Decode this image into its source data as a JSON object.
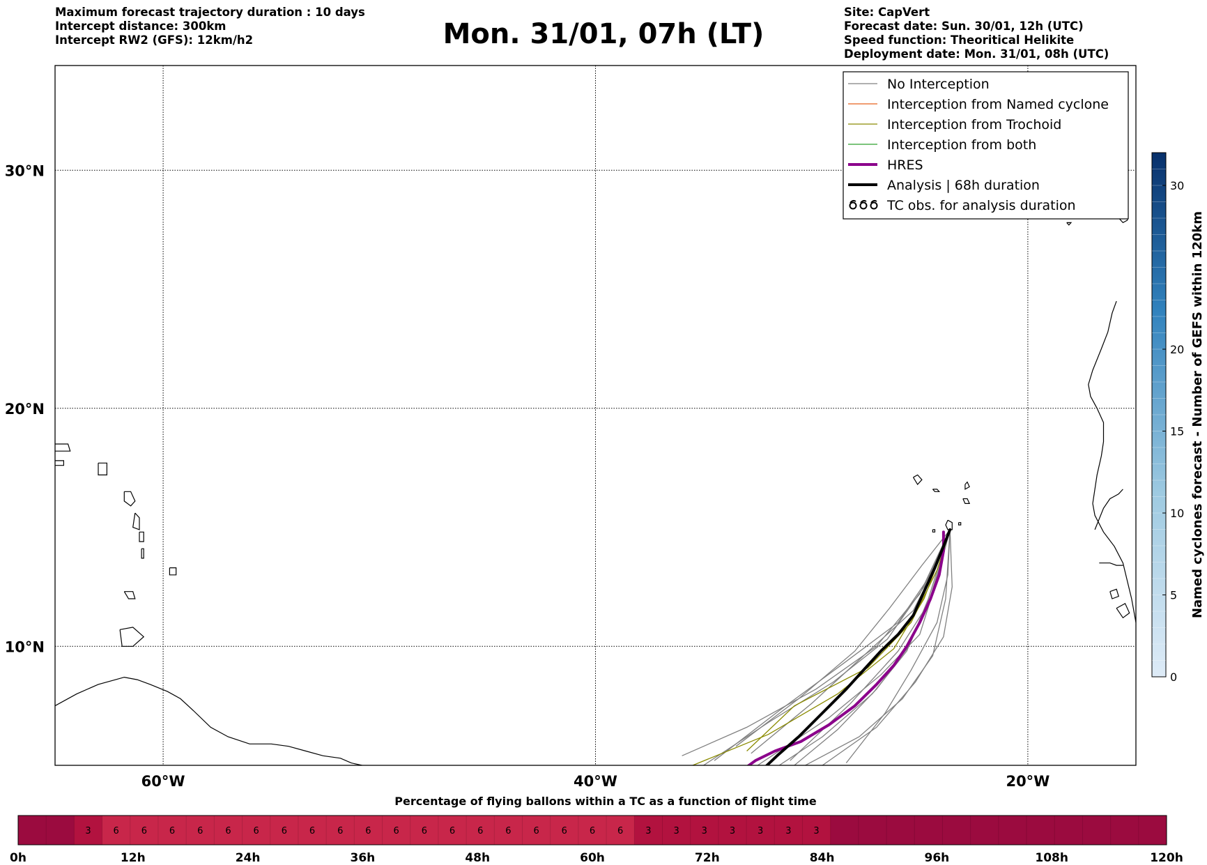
{
  "header": {
    "left_lines": [
      "Maximum forecast trajectory duration : 10 days",
      "Intercept distance: 300km",
      "Intercept RW2 (GFS):  12km/h2"
    ],
    "right_lines": [
      "Site: CapVert",
      "Forecast date: Sun. 30/01, 12h (UTC)",
      "Speed function: Theoritical Helikite",
      "Deployment date: Mon. 31/01, 08h (UTC)"
    ],
    "title": "Mon. 31/01, 07h (LT)"
  },
  "map": {
    "lon_range": [
      -65,
      15
    ],
    "lat_range": [
      5,
      35
    ],
    "lat_ticks": [
      {
        "value": 30,
        "label": "30°N"
      },
      {
        "value": 20,
        "label": "20°N"
      },
      {
        "value": 10,
        "label": "10°N"
      }
    ],
    "lon_ticks": [
      {
        "value": -60,
        "label": "60°W"
      },
      {
        "value": -40,
        "label": "40°W"
      },
      {
        "value": -20,
        "label": "20°W"
      }
    ],
    "grid": true,
    "legend": {
      "placement": "top-right",
      "entries": [
        {
          "label": "No Interception",
          "color": "#808080",
          "style": "thin"
        },
        {
          "label": "Interception from Named cyclone",
          "color": "#e8601c",
          "style": "thin"
        },
        {
          "label": "Interception from Trochoid",
          "color": "#8b8b00",
          "style": "thin"
        },
        {
          "label": "Interception from both",
          "color": "#2ca02c",
          "style": "thin"
        },
        {
          "label": "HRES",
          "color": "#8b008b",
          "style": "thick"
        },
        {
          "label": "Analysis | 68h duration",
          "color": "#000000",
          "style": "thick"
        },
        {
          "label": "TC obs. for analysis duration",
          "color": "#000000",
          "style": "tc-symbol"
        }
      ]
    }
  },
  "colorbar": {
    "label": "Named cyclones forecast - Number of GEFS within 120km",
    "min": 0,
    "max": 32,
    "ticks": [
      0,
      5,
      10,
      15,
      20,
      30
    ],
    "color_low": "#deebf7",
    "color_high": "#08306b"
  },
  "timebar": {
    "title": "Percentage of flying ballons within a TC as a function of flight time",
    "tick_labels": [
      "0h",
      "12h",
      "24h",
      "36h",
      "48h",
      "60h",
      "72h",
      "84h",
      "96h",
      "108h",
      "120h"
    ],
    "cells": [
      null,
      null,
      3,
      6,
      6,
      6,
      6,
      6,
      6,
      6,
      6,
      6,
      6,
      6,
      6,
      6,
      6,
      6,
      6,
      6,
      6,
      6,
      3,
      3,
      3,
      3,
      3,
      3,
      3,
      null,
      null,
      null,
      null,
      null,
      null,
      null,
      null,
      null,
      null,
      null,
      null
    ],
    "color_zero": "#9b0b3f",
    "color_three": "#b2123f",
    "color_six": "#c8264a"
  },
  "chart_data": {
    "type": "line",
    "title": "Mon. 31/01, 07h (LT)",
    "xlabel": "",
    "ylabel": "",
    "xlim": [
      -65,
      15
    ],
    "ylim": [
      5,
      35
    ],
    "series": [
      {
        "name": "HRES",
        "x": [
          -23.9,
          -23.9,
          -24.1,
          -24.5,
          -25.0,
          -25.6,
          -26.2,
          -27.0,
          -28.0,
          -29.2,
          -30.5,
          -31.7,
          -32.6,
          -33.2
        ],
        "y": [
          14.8,
          14.0,
          13.0,
          12.0,
          11.0,
          10.0,
          9.2,
          8.4,
          7.5,
          6.7,
          6.0,
          5.6,
          5.2,
          4.8
        ]
      },
      {
        "name": "Analysis | 68h duration",
        "x": [
          -23.6,
          -23.9,
          -24.3,
          -24.8,
          -25.3,
          -26.0,
          -26.8,
          -27.6,
          -28.4,
          -29.5,
          -30.6,
          -31.6,
          -32.3
        ],
        "y": [
          14.9,
          14.2,
          13.3,
          12.3,
          11.3,
          10.5,
          9.8,
          9.0,
          8.2,
          7.2,
          6.2,
          5.4,
          4.8
        ]
      }
    ]
  },
  "tracks": {
    "gray_ensemble": [
      {
        "x": [
          -23.6,
          -24.8,
          -26.5,
          -29.0,
          -32.0,
          -35.0
        ],
        "y": [
          14.9,
          12.5,
          10.3,
          8.5,
          6.8,
          5.0
        ]
      },
      {
        "x": [
          -23.6,
          -24.2,
          -25.0,
          -26.8,
          -29.2,
          -32.5
        ],
        "y": [
          14.9,
          12.8,
          10.5,
          8.8,
          7.0,
          5.0
        ]
      },
      {
        "x": [
          -23.6,
          -23.5,
          -23.9,
          -25.2,
          -27.0,
          -29.5
        ],
        "y": [
          14.9,
          12.5,
          10.4,
          8.5,
          6.6,
          5.0
        ]
      },
      {
        "x": [
          -23.6,
          -24.5,
          -26.0,
          -28.5,
          -31.5,
          -34.5
        ],
        "y": [
          14.9,
          13.0,
          11.0,
          9.3,
          7.3,
          5.2
        ]
      },
      {
        "x": [
          -23.6,
          -24.3,
          -25.3,
          -27.6,
          -30.0,
          -32.8
        ],
        "y": [
          14.9,
          13.3,
          11.5,
          9.6,
          7.6,
          5.5
        ]
      },
      {
        "x": [
          -23.6,
          -24.0,
          -24.6,
          -26.0,
          -28.2,
          -31.0
        ],
        "y": [
          14.9,
          13.6,
          11.8,
          9.8,
          7.6,
          5.2
        ]
      },
      {
        "x": [
          -23.6,
          -25.0,
          -27.0,
          -29.8,
          -33.0,
          -36.0
        ],
        "y": [
          14.9,
          12.2,
          10.0,
          8.2,
          6.6,
          5.4
        ]
      },
      {
        "x": [
          -23.6,
          -24.6,
          -25.6,
          -27.2,
          -29.5,
          -31.5
        ],
        "y": [
          14.9,
          12.0,
          9.8,
          8.0,
          6.2,
          5.0
        ]
      },
      {
        "x": [
          -23.6,
          -23.8,
          -24.4,
          -25.8,
          -27.8,
          -30.5
        ],
        "y": [
          14.9,
          12.0,
          9.6,
          7.8,
          6.2,
          4.9
        ]
      },
      {
        "x": [
          -23.6,
          -24.9,
          -26.4,
          -28.0,
          -30.6,
          -33.5
        ],
        "y": [
          14.9,
          13.4,
          11.6,
          9.8,
          7.8,
          5.8
        ]
      },
      {
        "x": [
          -23.6,
          -24.4,
          -25.5,
          -27.0,
          -28.8,
          -30.8
        ],
        "y": [
          14.9,
          12.3,
          10.0,
          8.2,
          6.5,
          5.0
        ]
      },
      {
        "x": [
          -23.6,
          -23.7,
          -24.2,
          -25.4,
          -26.6,
          -28.4
        ],
        "y": [
          14.9,
          13.0,
          11.0,
          9.0,
          7.2,
          5.1
        ]
      }
    ],
    "trochoid_tracks": [
      {
        "x": [
          -23.6,
          -24.8,
          -26.2,
          -28.8,
          -32.0,
          -35.5
        ],
        "y": [
          14.9,
          12.0,
          9.9,
          8.0,
          6.3,
          5.0
        ]
      },
      {
        "x": [
          -23.6,
          -24.2,
          -25.4,
          -27.4,
          -30.8,
          -33.0
        ],
        "y": [
          14.9,
          13.2,
          11.0,
          9.1,
          7.5,
          5.6
        ]
      }
    ]
  },
  "coastlines": {
    "caribbean": [
      {
        "x": [
          -65,
          -64.0,
          -63.0,
          -62.2,
          -61.8,
          -61.2,
          -60.6,
          -59.8,
          -59.2,
          -58.6,
          -57.8,
          -57.0,
          -56.0,
          -55.0,
          -54.2,
          -53.4,
          -52.6,
          -51.8,
          -51.3,
          -50.8
        ],
        "y": [
          7.5,
          8.0,
          8.4,
          8.6,
          8.7,
          8.6,
          8.4,
          8.1,
          7.8,
          7.3,
          6.6,
          6.2,
          5.9,
          5.9,
          5.8,
          5.6,
          5.4,
          5.3,
          5.1,
          5.0
        ]
      },
      {
        "x": [
          -62.0,
          -61.4,
          -60.9,
          -61.4,
          -61.9,
          -62.0
        ],
        "y": [
          10.7,
          10.8,
          10.4,
          10.0,
          10.0,
          10.7
        ]
      },
      {
        "x": [
          -63.0,
          -62.6,
          -62.6,
          -63.0,
          -63.0
        ],
        "y": [
          17.7,
          17.7,
          17.2,
          17.2,
          17.7
        ]
      },
      {
        "x": [
          -61.8,
          -61.5,
          -61.3,
          -61.5,
          -61.8,
          -61.8
        ],
        "y": [
          16.5,
          16.5,
          16.1,
          15.9,
          16.1,
          16.5
        ]
      },
      {
        "x": [
          -61.3,
          -61.1,
          -61.1,
          -61.4,
          -61.3
        ],
        "y": [
          15.6,
          15.4,
          14.9,
          15.0,
          15.6
        ]
      },
      {
        "x": [
          -61.1,
          -60.9,
          -60.9,
          -61.1,
          -61.1
        ],
        "y": [
          14.8,
          14.8,
          14.4,
          14.4,
          14.8
        ]
      },
      {
        "x": [
          -61.0,
          -60.9,
          -60.9,
          -61.0,
          -61.0
        ],
        "y": [
          14.1,
          14.1,
          13.7,
          13.7,
          14.1
        ]
      },
      {
        "x": [
          -59.7,
          -59.4,
          -59.4,
          -59.7,
          -59.7
        ],
        "y": [
          13.3,
          13.3,
          13.0,
          13.0,
          13.3
        ]
      },
      {
        "x": [
          -65.0,
          -64.4,
          -64.3,
          -65.0
        ],
        "y": [
          18.5,
          18.5,
          18.2,
          18.2
        ]
      },
      {
        "x": [
          -65.0,
          -64.6,
          -64.6,
          -65.0
        ],
        "y": [
          17.8,
          17.8,
          17.6,
          17.6
        ]
      },
      {
        "x": [
          -61.8,
          -61.4,
          -61.3,
          -61.6,
          -61.8
        ],
        "y": [
          12.3,
          12.3,
          12.0,
          12.0,
          12.3
        ]
      }
    ],
    "africa": [
      {
        "x": [
          -15.9,
          -16.1,
          -16.3,
          -16.6,
          -17.0,
          -17.2,
          -17.1,
          -16.8,
          -16.5,
          -16.5,
          -16.6,
          -16.8,
          -17.0,
          -16.9,
          -16.5,
          -16.0,
          -15.6,
          -15.2,
          -15.0
        ],
        "y": [
          24.5,
          24.0,
          23.2,
          22.5,
          21.6,
          21.0,
          20.5,
          20.0,
          19.4,
          18.6,
          18.0,
          17.2,
          16.0,
          15.5,
          14.8,
          14.2,
          13.5,
          12.0,
          11.0
        ]
      },
      {
        "x": [
          -16.9,
          -16.5,
          -16.2,
          -16.0,
          -15.8,
          -15.6
        ],
        "y": [
          14.9,
          15.8,
          16.2,
          16.3,
          16.4,
          16.6
        ]
      },
      {
        "x": [
          -16.7,
          -16.2,
          -15.9,
          -15.6
        ],
        "y": [
          13.5,
          13.5,
          13.4,
          13.4
        ]
      },
      {
        "x": [
          -15.9,
          -15.5,
          -15.3,
          -15.6,
          -15.9
        ],
        "y": [
          11.6,
          11.8,
          11.4,
          11.2,
          11.6
        ]
      },
      {
        "x": [
          -16.2,
          -15.9,
          -15.8,
          -16.1,
          -16.2
        ],
        "y": [
          12.3,
          12.4,
          12.1,
          12.0,
          12.3
        ]
      }
    ],
    "capeverde": [
      {
        "x": [
          -25.3,
          -25.1,
          -24.9,
          -25.1,
          -25.3
        ],
        "y": [
          17.1,
          17.2,
          17.0,
          16.8,
          17.1
        ]
      },
      {
        "x": [
          -24.4,
          -24.2,
          -24.1,
          -24.3,
          -24.4
        ],
        "y": [
          16.6,
          16.6,
          16.5,
          16.5,
          16.6
        ]
      },
      {
        "x": [
          -22.9,
          -22.8,
          -22.7,
          -22.9,
          -22.9
        ],
        "y": [
          16.8,
          16.9,
          16.7,
          16.6,
          16.8
        ]
      },
      {
        "x": [
          -23.0,
          -22.8,
          -22.7,
          -22.9,
          -23.0
        ],
        "y": [
          16.2,
          16.2,
          16.0,
          16.0,
          16.2
        ]
      },
      {
        "x": [
          -23.7,
          -23.5,
          -23.5,
          -23.7,
          -23.8,
          -23.7
        ],
        "y": [
          15.3,
          15.2,
          14.9,
          14.9,
          15.1,
          15.3
        ]
      },
      {
        "x": [
          -24.4,
          -24.3,
          -24.3,
          -24.4,
          -24.4
        ],
        "y": [
          14.9,
          14.9,
          14.8,
          14.8,
          14.9
        ]
      },
      {
        "x": [
          -23.2,
          -23.1,
          -23.1,
          -23.2,
          -23.2
        ],
        "y": [
          15.2,
          15.2,
          15.1,
          15.1,
          15.2
        ]
      }
    ],
    "canaries": [
      {
        "x": [
          -18.0,
          -17.8,
          -17.9,
          -18.0
        ],
        "y": [
          28.8,
          28.8,
          28.5,
          28.8
        ]
      },
      {
        "x": [
          -17.3,
          -17.1,
          -17.2,
          -17.3
        ],
        "y": [
          28.2,
          28.2,
          28.0,
          28.2
        ]
      },
      {
        "x": [
          -16.7,
          -16.3,
          -16.0,
          -16.5,
          -16.7
        ],
        "y": [
          28.4,
          28.6,
          28.6,
          28.1,
          28.4
        ]
      },
      {
        "x": [
          -15.7,
          -15.4,
          -15.4,
          -15.6,
          -15.8,
          -15.7
        ],
        "y": [
          28.2,
          28.1,
          27.9,
          27.8,
          28.0,
          28.2
        ]
      },
      {
        "x": [
          -18.2,
          -18.0,
          -18.1,
          -18.2
        ],
        "y": [
          27.8,
          27.8,
          27.7,
          27.8
        ]
      }
    ]
  }
}
